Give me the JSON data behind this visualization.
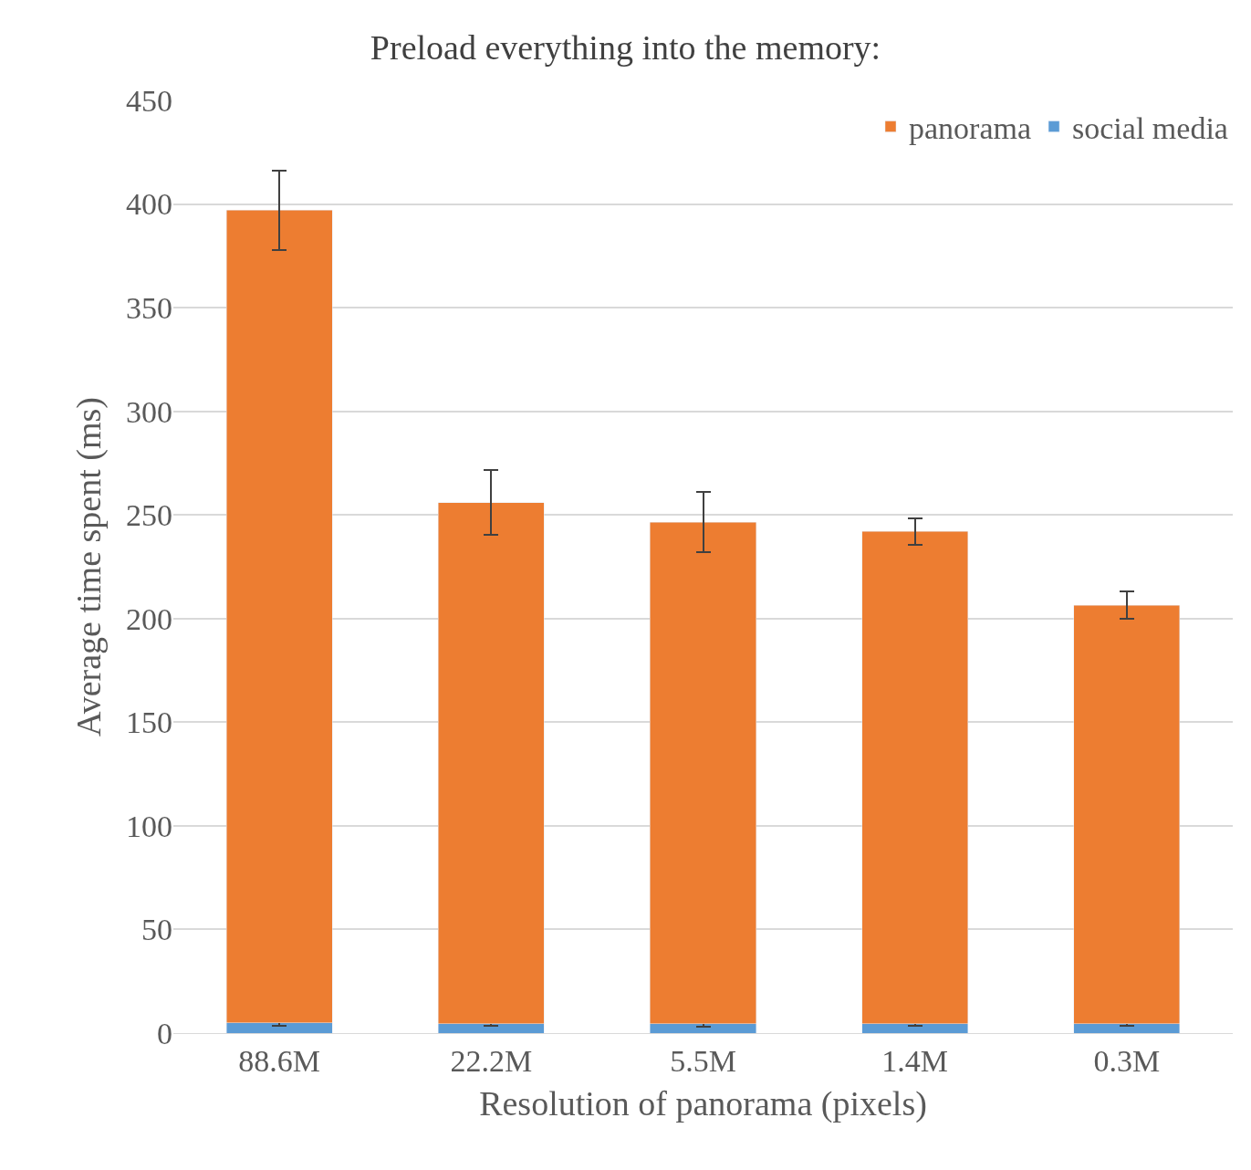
{
  "chart_data": {
    "type": "bar",
    "title": "Preload everything into the memory:",
    "xlabel": "Resolution of panorama (pixels)",
    "ylabel": "Average time spent (ms)",
    "categories": [
      "88.6M",
      "22.2M",
      "5.5M",
      "1.4M",
      "0.3M"
    ],
    "stacked": true,
    "series": [
      {
        "name": "social media",
        "color": "#5b9bd5",
        "values": [
          5,
          4.5,
          4.5,
          4.5,
          4.5
        ],
        "errors": [
          1.5,
          1,
          1.5,
          1,
          1
        ]
      },
      {
        "name": "panorama",
        "color": "#ed7d31",
        "values": [
          392,
          251.5,
          242,
          237.5,
          202
        ],
        "errors": [
          19,
          15.5,
          14.5,
          6.5,
          6.5
        ]
      }
    ],
    "ylim": [
      0,
      450
    ],
    "yticks": [
      0,
      50,
      100,
      150,
      200,
      250,
      300,
      350,
      400,
      450
    ],
    "grid": "y",
    "legend": "top right"
  }
}
